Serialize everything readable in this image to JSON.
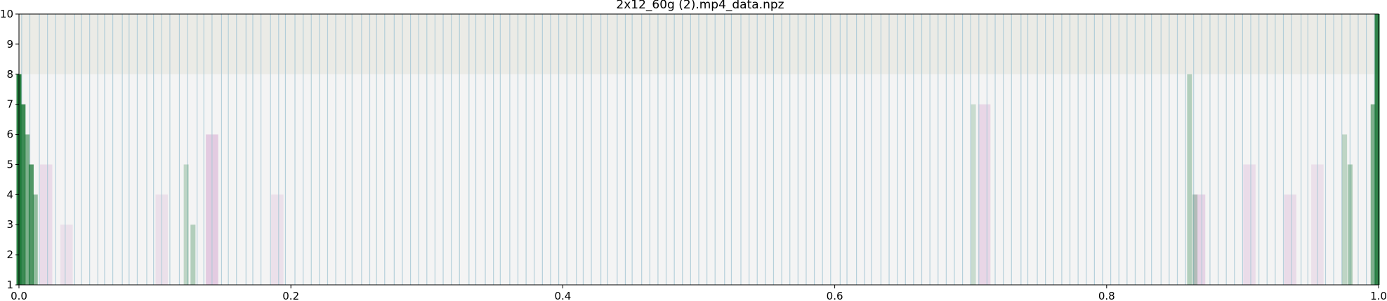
{
  "chart_data": {
    "type": "heatmap",
    "title": "2x12_60g (2).mp4_data.npz",
    "xlabel": "",
    "ylabel": "",
    "xlim": [
      0.0,
      1.0
    ],
    "ylim": [
      1,
      10
    ],
    "x_ticks": [
      "0.0",
      "0.2",
      "0.4",
      "0.6",
      "0.8",
      "1.0"
    ],
    "y_ticks": [
      "1",
      "2",
      "3",
      "4",
      "5",
      "6",
      "7",
      "8",
      "9",
      "10"
    ],
    "grid": false,
    "legend": "none",
    "colormap": "PRGn (purple - white - green)",
    "rows": [
      {
        "y_from": 1,
        "y_to": 8,
        "base_color": "#f4f4f4"
      },
      {
        "y_from": 8,
        "y_to": 10,
        "base_color": "#ebebe6"
      }
    ],
    "green_bands": [
      {
        "x": 0.0,
        "y_from": 1,
        "y_to": 8,
        "intensity": 0.95
      },
      {
        "x": 0.003,
        "y_from": 1,
        "y_to": 7,
        "intensity": 0.85
      },
      {
        "x": 0.006,
        "y_from": 1,
        "y_to": 6,
        "intensity": 0.55
      },
      {
        "x": 0.009,
        "y_from": 1,
        "y_to": 5,
        "intensity": 0.75
      },
      {
        "x": 0.012,
        "y_from": 1,
        "y_to": 4,
        "intensity": 0.45
      },
      {
        "x": 0.123,
        "y_from": 1,
        "y_to": 5,
        "intensity": 0.25
      },
      {
        "x": 0.128,
        "y_from": 1,
        "y_to": 3,
        "intensity": 0.3
      },
      {
        "x": 0.702,
        "y_from": 1,
        "y_to": 7,
        "intensity": 0.2
      },
      {
        "x": 0.861,
        "y_from": 1,
        "y_to": 8,
        "intensity": 0.3
      },
      {
        "x": 0.865,
        "y_from": 1,
        "y_to": 4,
        "intensity": 0.25
      },
      {
        "x": 0.975,
        "y_from": 1,
        "y_to": 6,
        "intensity": 0.25
      },
      {
        "x": 0.979,
        "y_from": 1,
        "y_to": 5,
        "intensity": 0.35
      },
      {
        "x": 0.996,
        "y_from": 1,
        "y_to": 7,
        "intensity": 0.55
      },
      {
        "x": 0.999,
        "y_from": 1,
        "y_to": 10,
        "intensity": 0.9
      }
    ],
    "purple_bands": [
      {
        "x": 0.02,
        "y_from": 1,
        "y_to": 5,
        "intensity": 0.15
      },
      {
        "x": 0.035,
        "y_from": 1,
        "y_to": 3,
        "intensity": 0.12
      },
      {
        "x": 0.105,
        "y_from": 1,
        "y_to": 4,
        "intensity": 0.12
      },
      {
        "x": 0.142,
        "y_from": 1,
        "y_to": 6,
        "intensity": 0.25
      },
      {
        "x": 0.19,
        "y_from": 1,
        "y_to": 4,
        "intensity": 0.12
      },
      {
        "x": 0.71,
        "y_from": 1,
        "y_to": 7,
        "intensity": 0.18
      },
      {
        "x": 0.868,
        "y_from": 1,
        "y_to": 4,
        "intensity": 0.2
      },
      {
        "x": 0.905,
        "y_from": 1,
        "y_to": 5,
        "intensity": 0.14
      },
      {
        "x": 0.935,
        "y_from": 1,
        "y_to": 4,
        "intensity": 0.15
      },
      {
        "x": 0.955,
        "y_from": 1,
        "y_to": 5,
        "intensity": 0.12
      }
    ],
    "event_lines": {
      "color": "#a9c9d6",
      "x": [
        0.002,
        0.008,
        0.015,
        0.021,
        0.027,
        0.034,
        0.041,
        0.046,
        0.052,
        0.058,
        0.063,
        0.069,
        0.076,
        0.081,
        0.087,
        0.094,
        0.099,
        0.105,
        0.111,
        0.118,
        0.124,
        0.131,
        0.136,
        0.142,
        0.149,
        0.154,
        0.16,
        0.167,
        0.172,
        0.178,
        0.185,
        0.191,
        0.196,
        0.203,
        0.209,
        0.215,
        0.221,
        0.227,
        0.233,
        0.24,
        0.245,
        0.252,
        0.258,
        0.263,
        0.269,
        0.276,
        0.282,
        0.288,
        0.294,
        0.3,
        0.306,
        0.312,
        0.318,
        0.324,
        0.331,
        0.336,
        0.343,
        0.349,
        0.354,
        0.361,
        0.367,
        0.373,
        0.379,
        0.385,
        0.391,
        0.397,
        0.403,
        0.41,
        0.415,
        0.421,
        0.428,
        0.433,
        0.44,
        0.446,
        0.451,
        0.458,
        0.464,
        0.47,
        0.476,
        0.482,
        0.488,
        0.494,
        0.5,
        0.506,
        0.512,
        0.519,
        0.524,
        0.531,
        0.537,
        0.543,
        0.549,
        0.555,
        0.561,
        0.567,
        0.573,
        0.579,
        0.585,
        0.591,
        0.597,
        0.604,
        0.609,
        0.616,
        0.622,
        0.627,
        0.634,
        0.64,
        0.646,
        0.652,
        0.658,
        0.664,
        0.67,
        0.676,
        0.682,
        0.688,
        0.694,
        0.7,
        0.706,
        0.712,
        0.718,
        0.724,
        0.73,
        0.737,
        0.742,
        0.749,
        0.755,
        0.761,
        0.767,
        0.773,
        0.779,
        0.785,
        0.791,
        0.797,
        0.803,
        0.809,
        0.815,
        0.821,
        0.828,
        0.833,
        0.84,
        0.846,
        0.852,
        0.858,
        0.864,
        0.87,
        0.876,
        0.882,
        0.888,
        0.894,
        0.9,
        0.906,
        0.912,
        0.918,
        0.924,
        0.93,
        0.936,
        0.943,
        0.948,
        0.955,
        0.961,
        0.967,
        0.973,
        0.979,
        0.985,
        0.991,
        0.997
      ]
    }
  }
}
